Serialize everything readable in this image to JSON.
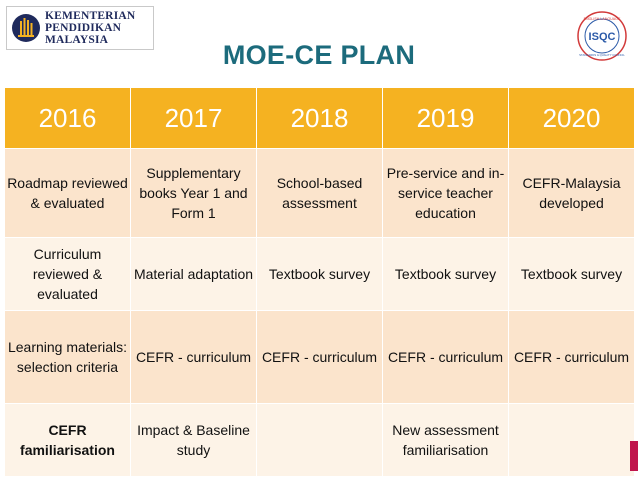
{
  "logo": {
    "ministry_lines": [
      "KEMENTERIAN",
      "PENDIDIKAN",
      "MALAYSIA"
    ],
    "seal_text": [
      "ENGLISH LANGUAGE",
      "ISQC",
      "STANDARDS & QUALITY COUNCIL"
    ]
  },
  "title": "MOE-CE PLAN",
  "colors": {
    "header": "#f5b221",
    "title": "#1c6b7c",
    "row_dark": "#fbe4cc",
    "row_light": "#fdf3e7",
    "accent": "#c0154c"
  },
  "table": {
    "headers": [
      "2016",
      "2017",
      "2018",
      "2019",
      "2020"
    ],
    "rows": [
      [
        "Roadmap reviewed & evaluated",
        "Supplementary books Year 1 and Form 1",
        "School-based assessment",
        "Pre-service and in-service teacher education",
        "CEFR-Malaysia developed"
      ],
      [
        "Curriculum reviewed & evaluated",
        "Material adaptation",
        "Textbook survey",
        "Textbook survey",
        "Textbook survey"
      ],
      [
        "Learning materials: selection criteria",
        "CEFR - curriculum",
        "CEFR - curriculum",
        "CEFR - curriculum",
        "CEFR - curriculum"
      ],
      [
        "CEFR familiarisation",
        "Impact & Baseline study",
        "",
        "New assessment familiarisation",
        ""
      ]
    ]
  }
}
